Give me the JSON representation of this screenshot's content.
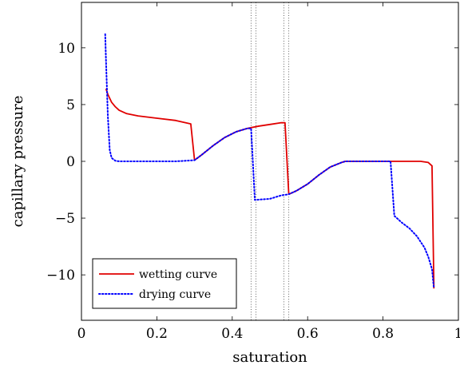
{
  "chart_data": {
    "type": "line",
    "title": "",
    "xlabel": "saturation",
    "ylabel": "capillary pressure",
    "xlim": [
      0,
      1
    ],
    "ylim": [
      -14,
      14
    ],
    "xticks": [
      0,
      0.2,
      0.4,
      0.6,
      0.8,
      1
    ],
    "xtick_labels": [
      "0",
      "0.2",
      "0.4",
      "0.6",
      "0.8",
      "1"
    ],
    "yticks": [
      -10,
      -5,
      0,
      5,
      10
    ],
    "ytick_labels": [
      "−10",
      "−5",
      "0",
      "5",
      "10"
    ],
    "grid": false,
    "legend_position": "bottom-left",
    "vertical_reference_lines": [
      0.45,
      0.463,
      0.537,
      0.55
    ],
    "series": [
      {
        "name": "wetting curve",
        "color": "#e00000",
        "style": "solid",
        "x": [
          0.065,
          0.07,
          0.08,
          0.09,
          0.1,
          0.12,
          0.15,
          0.2,
          0.25,
          0.29,
          0.3,
          0.32,
          0.35,
          0.38,
          0.41,
          0.44,
          0.47,
          0.5,
          0.53,
          0.54,
          0.55,
          0.57,
          0.6,
          0.63,
          0.66,
          0.69,
          0.7,
          0.75,
          0.8,
          0.85,
          0.9,
          0.92,
          0.93,
          0.935
        ],
        "y": [
          6.4,
          5.9,
          5.2,
          4.8,
          4.5,
          4.2,
          4.0,
          3.8,
          3.6,
          3.3,
          0.1,
          0.6,
          1.4,
          2.1,
          2.6,
          2.9,
          3.1,
          3.25,
          3.4,
          3.4,
          -2.9,
          -2.6,
          -2.0,
          -1.2,
          -0.5,
          -0.1,
          0,
          0,
          0,
          0,
          0,
          -0.1,
          -0.4,
          -11.2
        ]
      },
      {
        "name": "drying curve",
        "color": "#0000ff",
        "style": "dotted",
        "x": [
          0.063,
          0.065,
          0.07,
          0.075,
          0.08,
          0.09,
          0.1,
          0.15,
          0.2,
          0.25,
          0.3,
          0.32,
          0.35,
          0.38,
          0.41,
          0.44,
          0.45,
          0.46,
          0.5,
          0.53,
          0.55,
          0.57,
          0.6,
          0.63,
          0.66,
          0.69,
          0.7,
          0.75,
          0.8,
          0.82,
          0.83,
          0.85,
          0.87,
          0.89,
          0.91,
          0.92,
          0.93,
          0.935
        ],
        "y": [
          11.2,
          9.0,
          4.0,
          1.0,
          0.3,
          0.05,
          0,
          0,
          0,
          0,
          0.1,
          0.6,
          1.4,
          2.1,
          2.6,
          2.9,
          2.9,
          -3.4,
          -3.3,
          -3.0,
          -2.9,
          -2.6,
          -2.0,
          -1.2,
          -0.5,
          -0.1,
          0,
          0,
          0,
          0,
          -4.8,
          -5.4,
          -5.9,
          -6.6,
          -7.6,
          -8.4,
          -9.5,
          -11.2
        ]
      }
    ]
  }
}
